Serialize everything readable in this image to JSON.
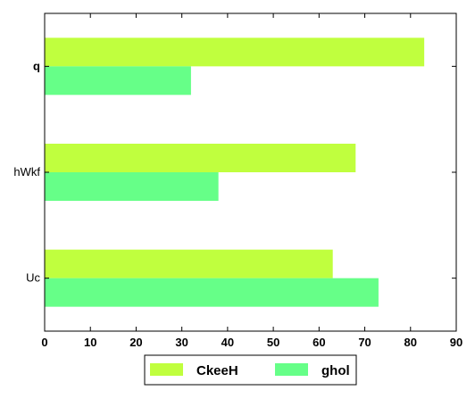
{
  "chart_data": {
    "type": "bar",
    "orientation": "horizontal",
    "categories": [
      "q",
      "hWkf",
      "Uc"
    ],
    "category_bold": [
      true,
      false,
      false
    ],
    "series": [
      {
        "name": "CkeeH",
        "color": "#c0ff3e",
        "values": [
          83,
          68,
          63
        ]
      },
      {
        "name": "ghol",
        "color": "#66ff88",
        "values": [
          32,
          38,
          73
        ]
      }
    ],
    "xlim": [
      0,
      90
    ],
    "xticks": [
      0,
      10,
      20,
      30,
      40,
      50,
      60,
      70,
      80,
      90
    ],
    "grid": false,
    "legend_position": "bottom-center",
    "title": "",
    "xlabel": "",
    "ylabel": ""
  }
}
